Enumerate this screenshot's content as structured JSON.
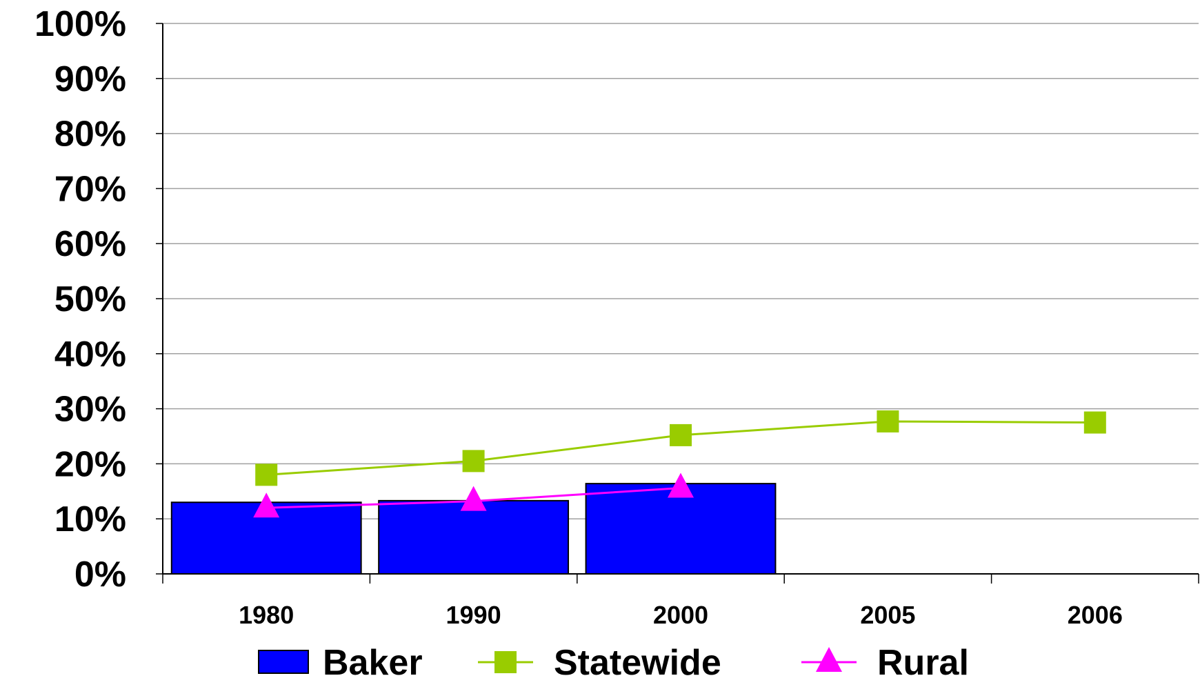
{
  "chart_data": {
    "type": "bar",
    "categories": [
      "1980",
      "1990",
      "2000",
      "2005",
      "2006"
    ],
    "ylim": [
      0,
      100
    ],
    "yticks": [
      "0%",
      "10%",
      "20%",
      "30%",
      "40%",
      "50%",
      "60%",
      "70%",
      "80%",
      "90%",
      "100%"
    ],
    "grid": true,
    "legend_position": "bottom",
    "series": [
      {
        "name": "Baker",
        "kind": "bar",
        "color": "#0000ff",
        "values": [
          13,
          13.3,
          16.4,
          null,
          null
        ]
      },
      {
        "name": "Statewide",
        "kind": "line",
        "marker": "square",
        "color": "#99cc00",
        "values": [
          18,
          20.5,
          25.2,
          27.7,
          27.5
        ]
      },
      {
        "name": "Rural",
        "kind": "line",
        "marker": "triangle",
        "color": "#ff00ff",
        "values": [
          12,
          13.2,
          15.6,
          null,
          null
        ]
      }
    ]
  }
}
